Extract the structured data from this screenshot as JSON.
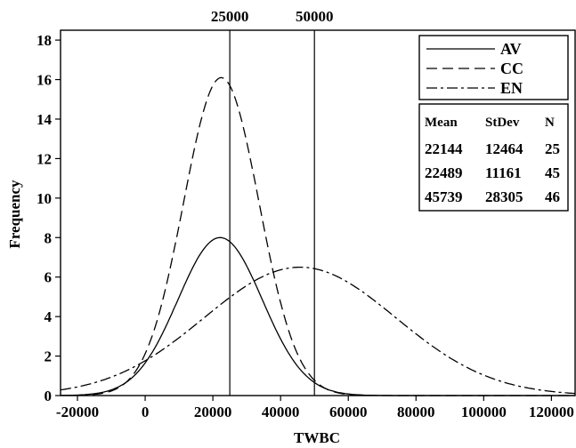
{
  "chart_data": {
    "type": "line",
    "xlabel": "TWBC",
    "ylabel": "Frequency",
    "xlim": [
      -25000,
      127000
    ],
    "ylim": [
      0,
      18.5
    ],
    "x_ticks": [
      "-20000",
      "0",
      "20000",
      "40000",
      "60000",
      "80000",
      "100000",
      "120000"
    ],
    "x_tick_values": [
      -20000,
      0,
      20000,
      40000,
      60000,
      80000,
      100000,
      120000
    ],
    "y_ticks": [
      "0",
      "2",
      "4",
      "6",
      "8",
      "10",
      "12",
      "14",
      "16",
      "18"
    ],
    "y_tick_values": [
      0,
      2,
      4,
      6,
      8,
      10,
      12,
      14,
      16,
      18
    ],
    "reference_lines": [
      {
        "x": 25000,
        "label": "25000"
      },
      {
        "x": 50000,
        "label": "50000"
      }
    ],
    "grid": false,
    "legend_position": "top-right",
    "series": [
      {
        "name": "AV",
        "style": "solid",
        "mean": 22144,
        "stdev": 12464,
        "n": 25,
        "peak": 8.0
      },
      {
        "name": "CC",
        "style": "dashed",
        "mean": 22489,
        "stdev": 11161,
        "n": 45,
        "peak": 16.1
      },
      {
        "name": "EN",
        "style": "dashdot",
        "mean": 45739,
        "stdev": 28305,
        "n": 46,
        "peak": 6.5
      }
    ],
    "stats_table": {
      "headers": [
        "Mean",
        "StDev",
        "N"
      ],
      "rows": [
        [
          "22144",
          "12464",
          "25"
        ],
        [
          "22489",
          "11161",
          "45"
        ],
        [
          "45739",
          "28305",
          "46"
        ]
      ]
    }
  }
}
